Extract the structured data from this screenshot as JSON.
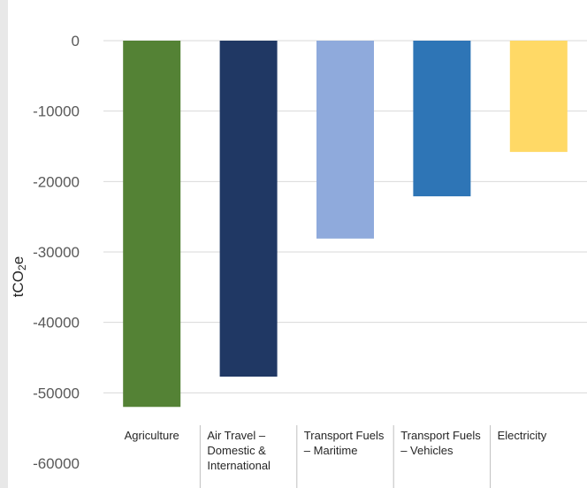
{
  "chart_data": {
    "type": "bar",
    "ylabel": "tCO2e",
    "ylabel_parts": {
      "base": "tCO",
      "sub": "2",
      "tail": "e"
    },
    "ylim": [
      -60000,
      0
    ],
    "yticks": [
      0,
      -10000,
      -20000,
      -30000,
      -40000,
      -50000,
      -60000
    ],
    "categories": [
      "Agriculture",
      "Air Travel – Domestic & International",
      "Transport Fuels – Maritime",
      "Transport Fuels – Vehicles",
      "Electricity"
    ],
    "category_lines": [
      [
        "Agriculture"
      ],
      [
        "Air Travel –",
        "Domestic &",
        "International"
      ],
      [
        "Transport Fuels",
        "– Maritime"
      ],
      [
        "Transport Fuels",
        "– Vehicles"
      ],
      [
        "Electricity"
      ]
    ],
    "values": [
      -52000,
      -47700,
      -28100,
      -22100,
      -15800
    ],
    "colors": [
      "#548235",
      "#203864",
      "#8faadc",
      "#2e75b6",
      "#ffd966"
    ],
    "grid": true
  }
}
